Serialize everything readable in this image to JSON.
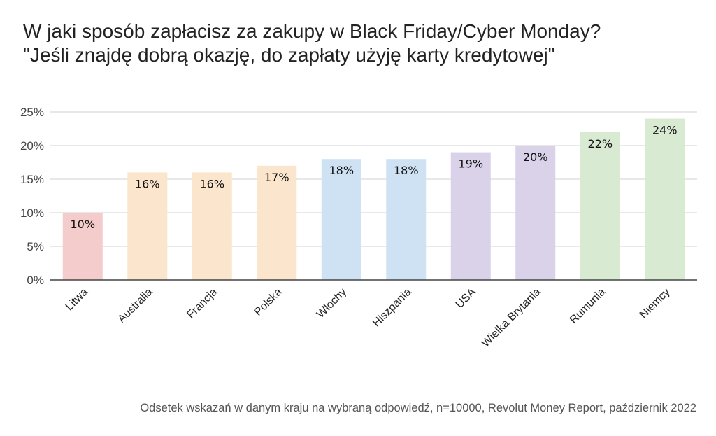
{
  "chart_data": {
    "type": "bar",
    "title": "W jaki sposób zapłacisz za zakupy w Black Friday/Cyber Monday?",
    "subtitle": "\"Jeśli znajdę dobrą okazję, do zapłaty użyję karty kredytowej\"",
    "categories": [
      "Litwa",
      "Australia",
      "Francja",
      "Polska",
      "Włochy",
      "Hiszpania",
      "USA",
      "Wielka Brytania",
      "Rumunia",
      "Niemcy"
    ],
    "values": [
      10,
      16,
      16,
      17,
      18,
      18,
      19,
      20,
      22,
      24
    ],
    "data_labels": [
      "10%",
      "16%",
      "16%",
      "17%",
      "18%",
      "18%",
      "19%",
      "20%",
      "22%",
      "24%"
    ],
    "colors": [
      "#f4cccc",
      "#fce5cd",
      "#fce5cd",
      "#fce5cd",
      "#cfe2f3",
      "#cfe2f3",
      "#d9d2e9",
      "#d9d2e9",
      "#d9ead3",
      "#d9ead3"
    ],
    "ylim": [
      0,
      25
    ],
    "yticks": [
      0,
      5,
      10,
      15,
      20,
      25
    ],
    "ytick_labels": [
      "0%",
      "5%",
      "10%",
      "15%",
      "20%",
      "25%"
    ],
    "xlabel": "",
    "ylabel": "",
    "grid": true,
    "legend": "none",
    "footnote": "Odsetek wskazań w danym kraju na wybraną odpowiedź, n=10000, Revolut Money Report, październik 2022"
  }
}
